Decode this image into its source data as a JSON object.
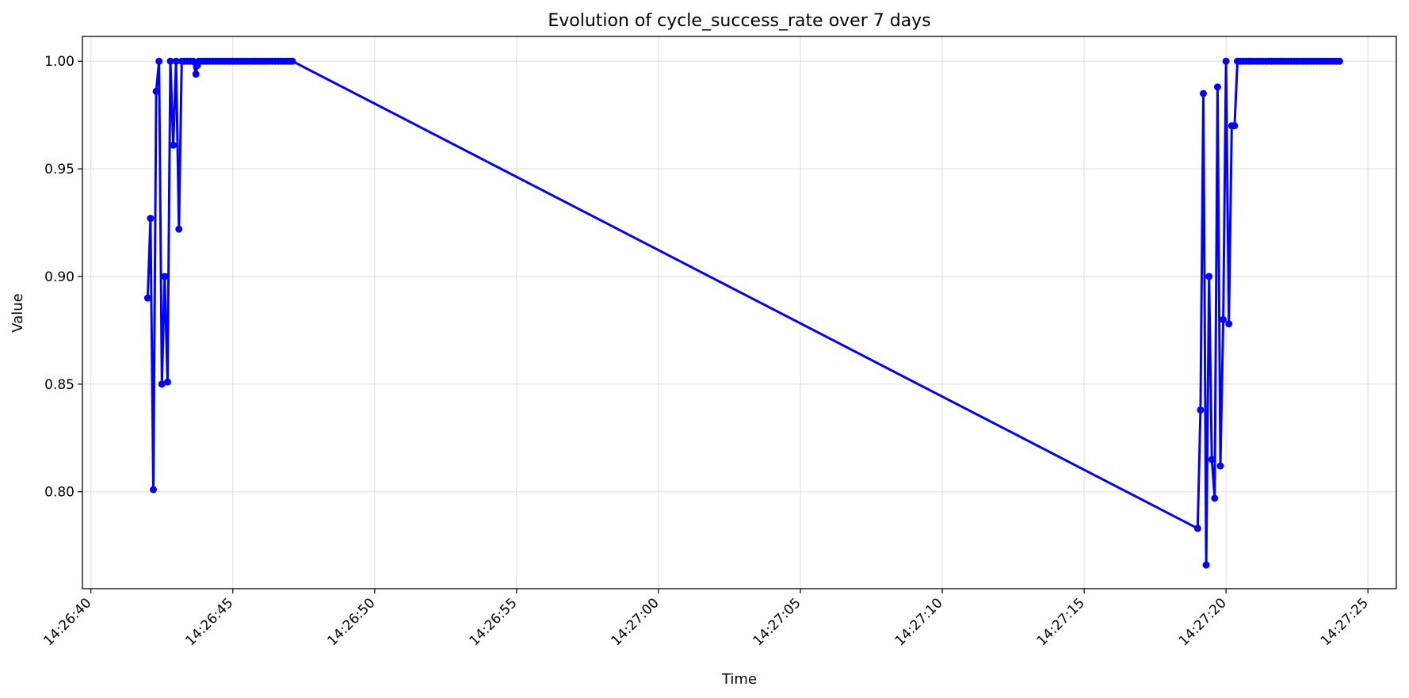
{
  "chart_data": {
    "type": "line",
    "title": "Evolution of cycle_success_rate over 7 days",
    "xlabel": "Time",
    "ylabel": "Value",
    "xlim": [
      "14:26:39.7",
      "14:27:26.0"
    ],
    "ylim": [
      0.755,
      1.0115
    ],
    "grid": true,
    "line_color": "#0000ff",
    "x_ticks": [
      "14:26:40",
      "14:26:45",
      "14:26:50",
      "14:26:55",
      "14:27:00",
      "14:27:05",
      "14:27:10",
      "14:27:15",
      "14:27:20",
      "14:27:25"
    ],
    "y_ticks": [
      "0.80",
      "0.85",
      "0.90",
      "0.95",
      "1.00"
    ],
    "y_tick_values": [
      0.8,
      0.85,
      0.9,
      0.95,
      1.0
    ],
    "series": [
      {
        "x": [
          "14:26:42.00",
          "14:26:42.10",
          "14:26:42.20",
          "14:26:42.30",
          "14:26:42.40",
          "14:26:42.50",
          "14:26:42.60",
          "14:26:42.70",
          "14:26:42.80",
          "14:26:42.90",
          "14:26:43.00",
          "14:26:43.10",
          "14:26:43.20",
          "14:26:43.30",
          "14:26:43.40",
          "14:26:43.50",
          "14:26:43.60",
          "14:26:43.70",
          "14:26:43.75",
          "14:26:43.80",
          "14:26:43.90",
          "14:26:44.00",
          "14:26:44.10",
          "14:26:44.20",
          "14:26:44.30",
          "14:26:44.40",
          "14:26:44.50",
          "14:26:44.60",
          "14:26:44.70",
          "14:26:44.80",
          "14:26:44.90",
          "14:26:45.00",
          "14:26:45.10",
          "14:26:45.20",
          "14:26:45.30",
          "14:26:45.40",
          "14:26:45.50",
          "14:26:45.60",
          "14:26:45.70",
          "14:26:45.80",
          "14:26:45.90",
          "14:26:46.00",
          "14:26:46.10",
          "14:26:46.20",
          "14:26:46.30",
          "14:26:46.40",
          "14:26:46.50",
          "14:26:46.60",
          "14:26:46.70",
          "14:26:46.80",
          "14:26:46.90",
          "14:26:47.00",
          "14:26:47.10",
          "14:27:19.00",
          "14:27:19.10",
          "14:27:19.20",
          "14:27:19.30",
          "14:27:19.40",
          "14:27:19.50",
          "14:27:19.60",
          "14:27:19.70",
          "14:27:19.80",
          "14:27:19.90",
          "14:27:20.00",
          "14:27:20.10",
          "14:27:20.20",
          "14:27:20.30",
          "14:27:20.40",
          "14:27:20.50",
          "14:27:20.60",
          "14:27:20.70",
          "14:27:20.80",
          "14:27:20.90",
          "14:27:21.00",
          "14:27:21.10",
          "14:27:21.20",
          "14:27:21.30",
          "14:27:21.40",
          "14:27:21.50",
          "14:27:21.60",
          "14:27:21.70",
          "14:27:21.80",
          "14:27:21.90",
          "14:27:22.00",
          "14:27:22.10",
          "14:27:22.20",
          "14:27:22.30",
          "14:27:22.40",
          "14:27:22.50",
          "14:27:22.60",
          "14:27:22.70",
          "14:27:22.80",
          "14:27:22.90",
          "14:27:23.00",
          "14:27:23.10",
          "14:27:23.20",
          "14:27:23.30",
          "14:27:23.40",
          "14:27:23.50",
          "14:27:23.60",
          "14:27:23.70",
          "14:27:23.80",
          "14:27:23.90",
          "14:27:24.00"
        ],
        "values": [
          0.89,
          0.927,
          0.801,
          0.986,
          1.0,
          0.85,
          0.9,
          0.851,
          1.0,
          0.961,
          1.0,
          0.922,
          1.0,
          1.0,
          1.0,
          1.0,
          1.0,
          0.994,
          0.998,
          1.0,
          1.0,
          1.0,
          1.0,
          1.0,
          1.0,
          1.0,
          1.0,
          1.0,
          1.0,
          1.0,
          1.0,
          1.0,
          1.0,
          1.0,
          1.0,
          1.0,
          1.0,
          1.0,
          1.0,
          1.0,
          1.0,
          1.0,
          1.0,
          1.0,
          1.0,
          1.0,
          1.0,
          1.0,
          1.0,
          1.0,
          1.0,
          1.0,
          1.0,
          0.783,
          0.838,
          0.985,
          0.766,
          0.9,
          0.815,
          0.797,
          0.988,
          0.812,
          0.88,
          1.0,
          0.878,
          0.97,
          0.97,
          1.0,
          1.0,
          1.0,
          1.0,
          1.0,
          1.0,
          1.0,
          1.0,
          1.0,
          1.0,
          1.0,
          1.0,
          1.0,
          1.0,
          1.0,
          1.0,
          1.0,
          1.0,
          1.0,
          1.0,
          1.0,
          1.0,
          1.0,
          1.0,
          1.0,
          1.0,
          1.0,
          1.0,
          1.0,
          1.0,
          1.0,
          1.0,
          1.0,
          1.0,
          1.0,
          1.0,
          1.0
        ]
      }
    ]
  }
}
